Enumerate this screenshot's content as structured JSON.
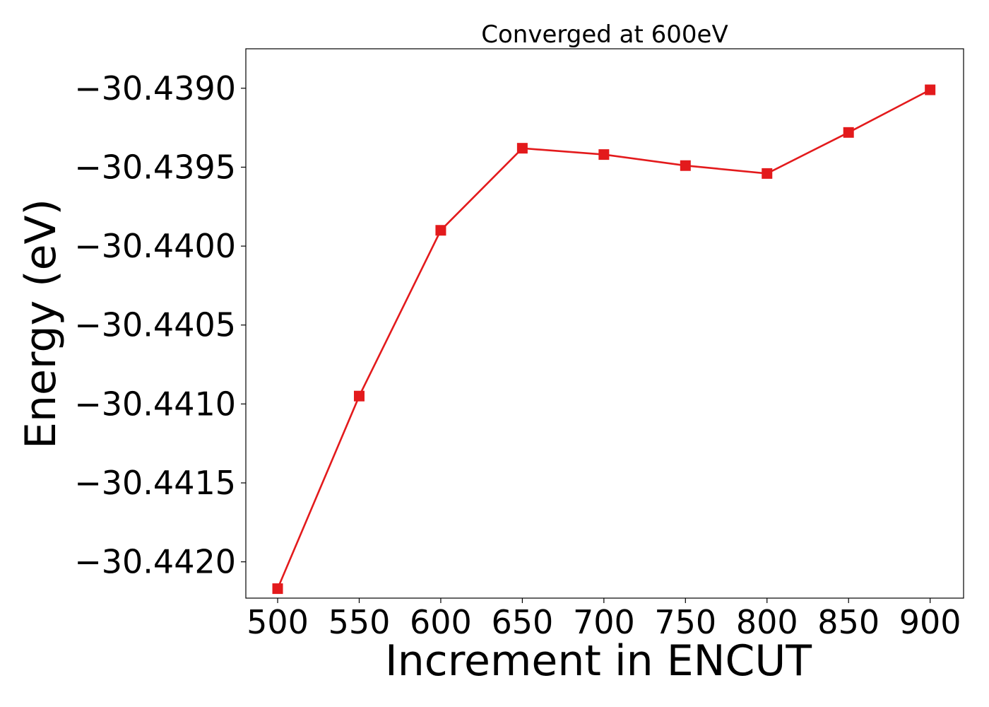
{
  "chart_data": {
    "type": "line",
    "title": "Converged at 600eV",
    "xlabel": "Increment in ENCUT",
    "ylabel": "Energy (eV)",
    "x": [
      500,
      550,
      600,
      650,
      700,
      750,
      800,
      850,
      900
    ],
    "x_ticks": [
      500,
      550,
      600,
      650,
      700,
      750,
      800,
      850,
      900
    ],
    "x_tick_labels": [
      "500",
      "550",
      "600",
      "650",
      "700",
      "750",
      "800",
      "850",
      "900"
    ],
    "y_ticks": [
      -30.439,
      -30.4395,
      -30.44,
      -30.4405,
      -30.441,
      -30.4415,
      -30.442
    ],
    "y_tick_labels": [
      "−30.4390",
      "−30.4395",
      "−30.4400",
      "−30.4405",
      "−30.4410",
      "−30.4415",
      "−30.4420"
    ],
    "xlim": [
      480.5,
      920.5
    ],
    "ylim": [
      -30.44223,
      -30.43875
    ],
    "grid": false,
    "series": [
      {
        "color": "#e31a1c",
        "marker": "square",
        "values": [
          -30.44217,
          -30.44095,
          -30.4399,
          -30.43938,
          -30.43942,
          -30.43949,
          -30.43954,
          -30.43928,
          -30.43901
        ]
      }
    ]
  }
}
